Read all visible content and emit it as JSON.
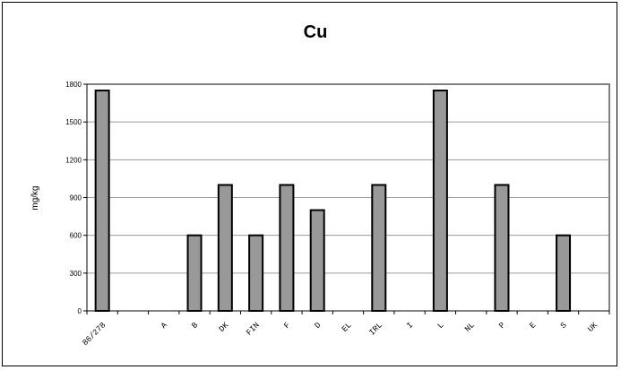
{
  "chart_data": {
    "type": "bar",
    "title": "Cu",
    "xlabel": "",
    "ylabel": "mg/kg",
    "ylim": [
      0,
      1800
    ],
    "yticks": [
      0,
      300,
      600,
      900,
      1200,
      1500,
      1800
    ],
    "categories": [
      "86/278",
      "",
      "A",
      "B",
      "DK",
      "FIN",
      "F",
      "D",
      "EL",
      "IRL",
      "I",
      "L",
      "NL",
      "P",
      "E",
      "S",
      "UK"
    ],
    "values": [
      1750,
      null,
      null,
      600,
      1000,
      600,
      1000,
      800,
      null,
      1000,
      null,
      1750,
      null,
      1000,
      null,
      600,
      null
    ],
    "grid": true,
    "bar_color": "#999999",
    "plot_background": "#ffffff"
  }
}
